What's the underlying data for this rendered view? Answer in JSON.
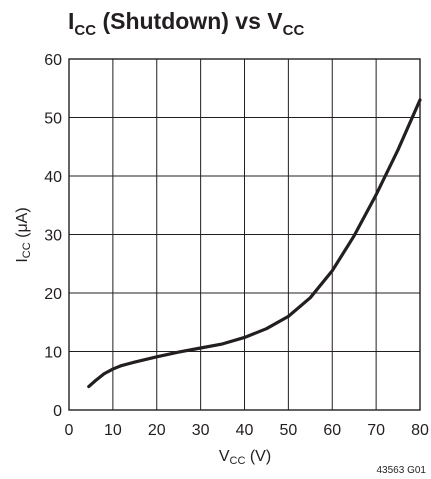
{
  "chart_data": {
    "type": "line",
    "title": {
      "main": "I",
      "main_sub": "CC",
      "suffix": " (Shutdown) vs V",
      "suffix_sub": "CC"
    },
    "xlabel": {
      "main": "V",
      "sub": "CC",
      "unit": " (V)"
    },
    "ylabel": {
      "main": "I",
      "sub": "CC",
      "unit": " (μA)"
    },
    "xlim": [
      0,
      80
    ],
    "ylim": [
      0,
      60
    ],
    "xticks": [
      0,
      10,
      20,
      30,
      40,
      50,
      60,
      70,
      80
    ],
    "yticks": [
      0,
      10,
      20,
      30,
      40,
      50,
      60
    ],
    "xtick_labels": [
      "0",
      "10",
      "20",
      "30",
      "40",
      "50",
      "60",
      "70",
      "80"
    ],
    "ytick_labels": [
      "0",
      "10",
      "20",
      "30",
      "40",
      "50",
      "60"
    ],
    "grid": true,
    "series": [
      {
        "color": "#231f20",
        "x": [
          4.5,
          6,
          8,
          10,
          12,
          15,
          20,
          25,
          30,
          35,
          40,
          45,
          50,
          55,
          60,
          65,
          70,
          75,
          80
        ],
        "y": [
          4.0,
          5.0,
          6.2,
          7.0,
          7.6,
          8.2,
          9.1,
          9.9,
          10.6,
          11.3,
          12.4,
          13.9,
          16.0,
          19.2,
          23.8,
          29.8,
          36.8,
          44.5,
          53.0
        ]
      }
    ],
    "figure_id": "43563 G01"
  }
}
